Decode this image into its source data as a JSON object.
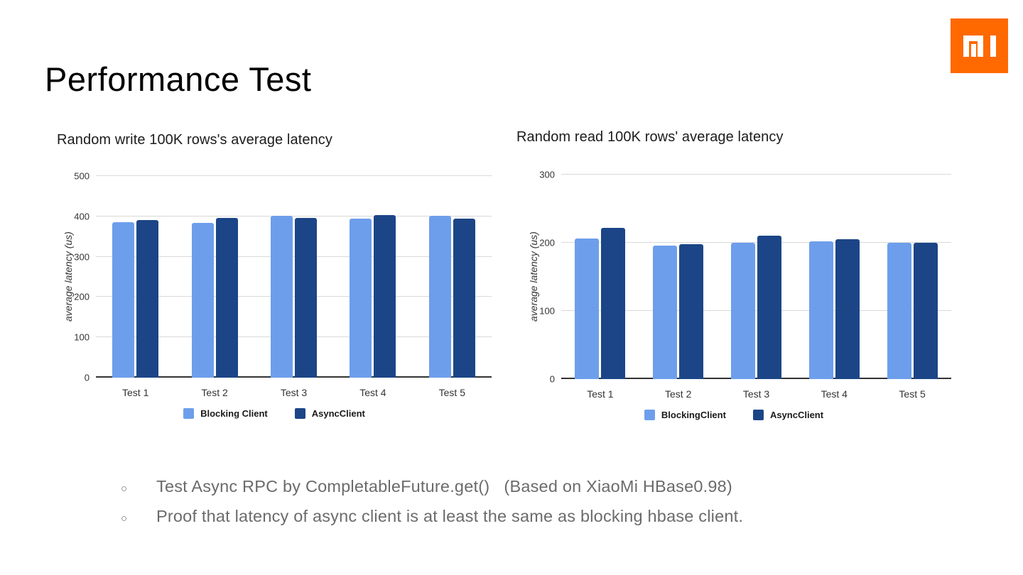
{
  "slide": {
    "title": "Performance Test",
    "logo": {
      "brand": "xiaomi",
      "color": "#ff6900"
    },
    "bullets": {
      "marker": "○",
      "items": [
        "Test Async RPC by CompletableFuture.get()   (Based on XiaoMi HBase0.98)",
        "Proof that latency of async client is at least the same as blocking hbase client."
      ]
    }
  },
  "chart_data": [
    {
      "type": "bar",
      "title": "Random write 100K rows's average latency",
      "categories": [
        "Test 1",
        "Test 2",
        "Test 3",
        "Test 4",
        "Test 5"
      ],
      "series": [
        {
          "name": "Blocking Client",
          "color": "#6d9eeb",
          "values": [
            386,
            384,
            401,
            395,
            401
          ]
        },
        {
          "name": "AsyncClient",
          "color": "#1c4587",
          "values": [
            390,
            397,
            397,
            403,
            395
          ]
        }
      ],
      "xlabel": "",
      "ylabel": "average latency (us)",
      "ylim": [
        0,
        500
      ],
      "yticks": [
        0,
        100,
        200,
        300,
        400,
        500
      ],
      "grid": true,
      "legend_position": "bottom"
    },
    {
      "type": "bar",
      "title": "Random read 100K rows' average latency",
      "categories": [
        "Test 1",
        "Test 2",
        "Test 3",
        "Test 4",
        "Test 5"
      ],
      "series": [
        {
          "name": "BlockingClient",
          "color": "#6d9eeb",
          "values": [
            206,
            196,
            200,
            202,
            200
          ]
        },
        {
          "name": "AsyncClient",
          "color": "#1c4587",
          "values": [
            222,
            198,
            210,
            205,
            200
          ]
        }
      ],
      "xlabel": "",
      "ylabel": "average latency (us)",
      "ylim": [
        0,
        300
      ],
      "yticks": [
        0,
        100,
        200,
        300
      ],
      "grid": true,
      "legend_position": "bottom"
    }
  ]
}
